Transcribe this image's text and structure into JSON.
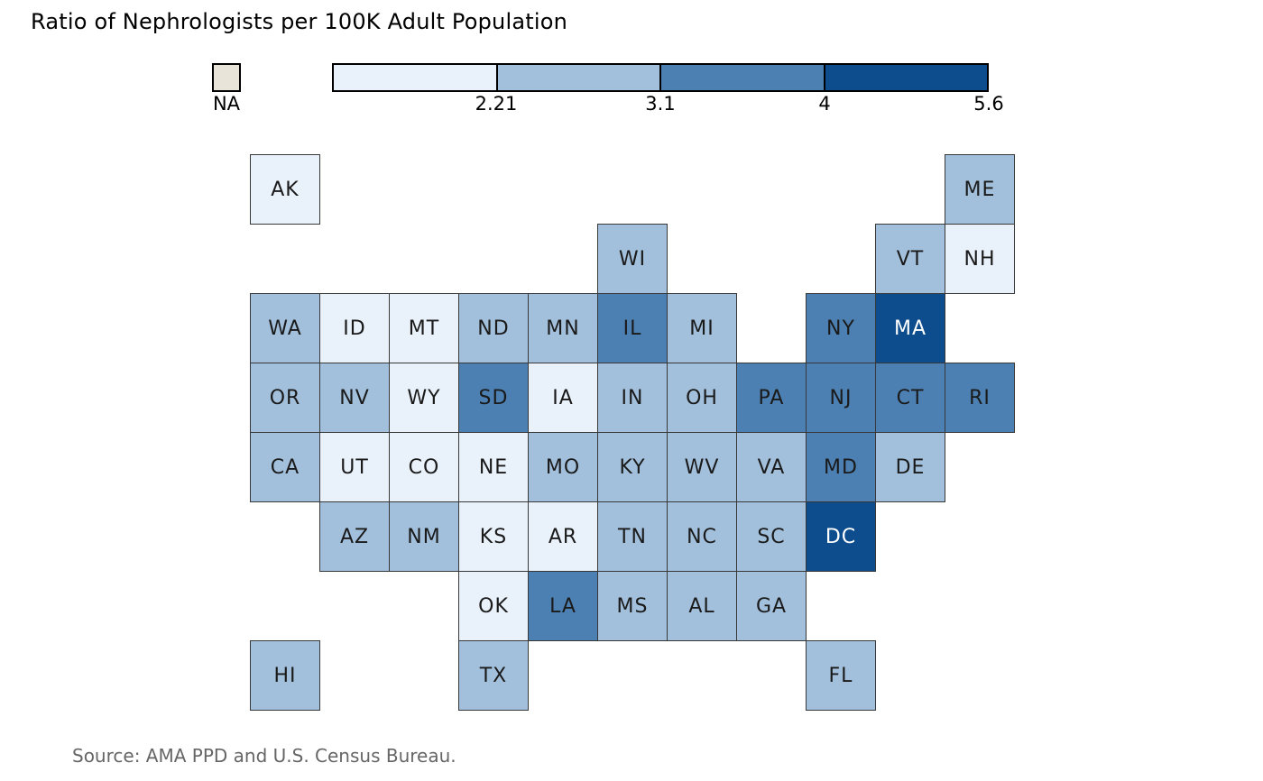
{
  "page": {
    "title": "Ratio of Nephrologists per 100K Adult Population",
    "source": "Source: AMA PPD and U.S. Census Bureau."
  },
  "chart_data": {
    "type": "heatmap",
    "subtype": "us-state-tile-cartogram",
    "title": "Ratio of Nephrologists per 100K Adult Population",
    "source": "Source: AMA PPD and U.S. Census Bureau.",
    "legend": {
      "position": "top",
      "na_label": "NA",
      "na_color": "#e8e4da",
      "breaks": [
        "2.21",
        "3.1",
        "4",
        "5.6"
      ],
      "bin_colors": [
        "#e9f1fa",
        "#a2c0dc",
        "#4d80b2",
        "#0d4d8d"
      ],
      "bin_ranges": [
        "below 2.21",
        "2.21 to 3.1",
        "3.1 to 4",
        "4 to 5.6"
      ],
      "text_color_dark_bin": "#ffffff",
      "text_color_default": "#1a1a1a"
    },
    "grid": {
      "rows": 8,
      "cols": 11
    },
    "states": [
      {
        "abbr": "AK",
        "row": 1,
        "col": 1,
        "bin": 1
      },
      {
        "abbr": "ME",
        "row": 1,
        "col": 11,
        "bin": 2
      },
      {
        "abbr": "WI",
        "row": 2,
        "col": 6,
        "bin": 2
      },
      {
        "abbr": "VT",
        "row": 2,
        "col": 10,
        "bin": 2
      },
      {
        "abbr": "NH",
        "row": 2,
        "col": 11,
        "bin": 1
      },
      {
        "abbr": "WA",
        "row": 3,
        "col": 1,
        "bin": 2
      },
      {
        "abbr": "ID",
        "row": 3,
        "col": 2,
        "bin": 1
      },
      {
        "abbr": "MT",
        "row": 3,
        "col": 3,
        "bin": 1
      },
      {
        "abbr": "ND",
        "row": 3,
        "col": 4,
        "bin": 2
      },
      {
        "abbr": "MN",
        "row": 3,
        "col": 5,
        "bin": 2
      },
      {
        "abbr": "IL",
        "row": 3,
        "col": 6,
        "bin": 3
      },
      {
        "abbr": "MI",
        "row": 3,
        "col": 7,
        "bin": 2
      },
      {
        "abbr": "NY",
        "row": 3,
        "col": 9,
        "bin": 3
      },
      {
        "abbr": "MA",
        "row": 3,
        "col": 10,
        "bin": 4
      },
      {
        "abbr": "OR",
        "row": 4,
        "col": 1,
        "bin": 2
      },
      {
        "abbr": "NV",
        "row": 4,
        "col": 2,
        "bin": 2
      },
      {
        "abbr": "WY",
        "row": 4,
        "col": 3,
        "bin": 1
      },
      {
        "abbr": "SD",
        "row": 4,
        "col": 4,
        "bin": 3
      },
      {
        "abbr": "IA",
        "row": 4,
        "col": 5,
        "bin": 1
      },
      {
        "abbr": "IN",
        "row": 4,
        "col": 6,
        "bin": 2
      },
      {
        "abbr": "OH",
        "row": 4,
        "col": 7,
        "bin": 2
      },
      {
        "abbr": "PA",
        "row": 4,
        "col": 8,
        "bin": 3
      },
      {
        "abbr": "NJ",
        "row": 4,
        "col": 9,
        "bin": 3
      },
      {
        "abbr": "CT",
        "row": 4,
        "col": 10,
        "bin": 3
      },
      {
        "abbr": "RI",
        "row": 4,
        "col": 11,
        "bin": 3
      },
      {
        "abbr": "CA",
        "row": 5,
        "col": 1,
        "bin": 2
      },
      {
        "abbr": "UT",
        "row": 5,
        "col": 2,
        "bin": 1
      },
      {
        "abbr": "CO",
        "row": 5,
        "col": 3,
        "bin": 1
      },
      {
        "abbr": "NE",
        "row": 5,
        "col": 4,
        "bin": 1
      },
      {
        "abbr": "MO",
        "row": 5,
        "col": 5,
        "bin": 2
      },
      {
        "abbr": "KY",
        "row": 5,
        "col": 6,
        "bin": 2
      },
      {
        "abbr": "WV",
        "row": 5,
        "col": 7,
        "bin": 2
      },
      {
        "abbr": "VA",
        "row": 5,
        "col": 8,
        "bin": 2
      },
      {
        "abbr": "MD",
        "row": 5,
        "col": 9,
        "bin": 3
      },
      {
        "abbr": "DE",
        "row": 5,
        "col": 10,
        "bin": 2
      },
      {
        "abbr": "AZ",
        "row": 6,
        "col": 2,
        "bin": 2
      },
      {
        "abbr": "NM",
        "row": 6,
        "col": 3,
        "bin": 2
      },
      {
        "abbr": "KS",
        "row": 6,
        "col": 4,
        "bin": 1
      },
      {
        "abbr": "AR",
        "row": 6,
        "col": 5,
        "bin": 1
      },
      {
        "abbr": "TN",
        "row": 6,
        "col": 6,
        "bin": 2
      },
      {
        "abbr": "NC",
        "row": 6,
        "col": 7,
        "bin": 2
      },
      {
        "abbr": "SC",
        "row": 6,
        "col": 8,
        "bin": 2
      },
      {
        "abbr": "DC",
        "row": 6,
        "col": 9,
        "bin": 4
      },
      {
        "abbr": "OK",
        "row": 7,
        "col": 4,
        "bin": 1
      },
      {
        "abbr": "LA",
        "row": 7,
        "col": 5,
        "bin": 3
      },
      {
        "abbr": "MS",
        "row": 7,
        "col": 6,
        "bin": 2
      },
      {
        "abbr": "AL",
        "row": 7,
        "col": 7,
        "bin": 2
      },
      {
        "abbr": "GA",
        "row": 7,
        "col": 8,
        "bin": 2
      },
      {
        "abbr": "HI",
        "row": 8,
        "col": 1,
        "bin": 2
      },
      {
        "abbr": "TX",
        "row": 8,
        "col": 4,
        "bin": 2
      },
      {
        "abbr": "FL",
        "row": 8,
        "col": 9,
        "bin": 2
      }
    ]
  }
}
